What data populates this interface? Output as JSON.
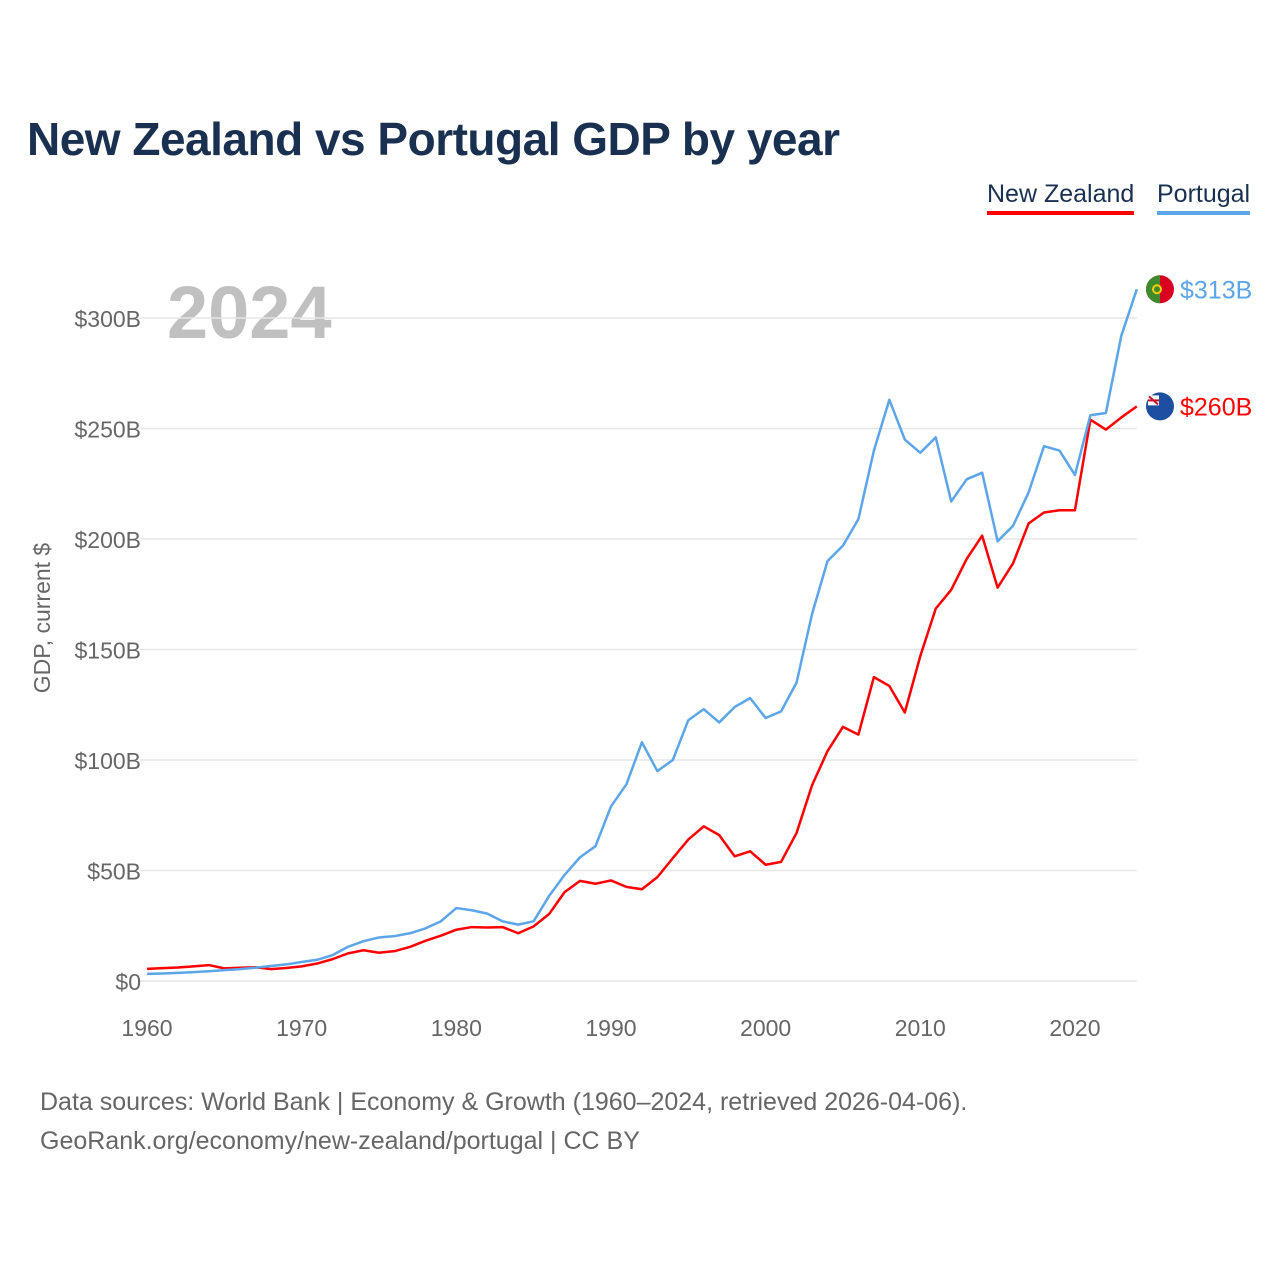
{
  "chart_data": {
    "type": "line",
    "title": "New Zealand vs Portugal GDP by year",
    "ylabel": "GDP, current $",
    "xlabel": "",
    "year_label": "2024",
    "xlim": [
      1960,
      2024
    ],
    "ylim": [
      0,
      300
    ],
    "x_ticks": [
      "1960",
      "1970",
      "1980",
      "1990",
      "2000",
      "2010",
      "2020"
    ],
    "y_ticks": [
      "$0",
      "$50B",
      "$100B",
      "$150B",
      "$200B",
      "$250B",
      "$300B"
    ],
    "grid": true,
    "legend_position": "top-right",
    "x_start": 1960,
    "series": [
      {
        "name": "New Zealand",
        "color": "#ff0000",
        "end_label": "$260B",
        "values": [
          5.5,
          5.8,
          6.1,
          6.6,
          7.2,
          5.7,
          6,
          6.2,
          5.4,
          5.9,
          6.6,
          7.9,
          9.9,
          12.5,
          13.9,
          12.8,
          13.5,
          15.4,
          18.2,
          20.5,
          23.2,
          24.4,
          24.2,
          24.4,
          21.6,
          24.7,
          30.3,
          40.2,
          45.3,
          44,
          45.5,
          42.6,
          41.5,
          47,
          55.6,
          64,
          70,
          66,
          56.4,
          58.7,
          52.6,
          53.9,
          67,
          88.5,
          104,
          115,
          111.5,
          137.5,
          133.5,
          121.5,
          147,
          168.5,
          177,
          191,
          201.5,
          178,
          189,
          207,
          212,
          213,
          213,
          254,
          249.5,
          255,
          260
        ]
      },
      {
        "name": "Portugal",
        "color": "#5ba5e8",
        "end_label": "$313B",
        "values": [
          3.2,
          3.4,
          3.7,
          4.0,
          4.4,
          4.9,
          5.4,
          6.0,
          6.8,
          7.5,
          8.6,
          9.6,
          11.7,
          15.5,
          18,
          19.7,
          20.3,
          21.6,
          23.8,
          27,
          33,
          32,
          30.5,
          27,
          25.5,
          27,
          38.5,
          48,
          56,
          61,
          79,
          89,
          108,
          95,
          100,
          118,
          123,
          117,
          124,
          128,
          119,
          122,
          135,
          166,
          190,
          197,
          209,
          240,
          263,
          245,
          239,
          246,
          217,
          227,
          230,
          199,
          206,
          221,
          242,
          240,
          229,
          256,
          257,
          292,
          313
        ]
      }
    ]
  },
  "footer": {
    "line1": "Data sources: World Bank | Economy & Growth (1960–2024, retrieved 2026-04-06).",
    "line2": "GeoRank.org/economy/new-zealand/portugal | CC BY"
  }
}
